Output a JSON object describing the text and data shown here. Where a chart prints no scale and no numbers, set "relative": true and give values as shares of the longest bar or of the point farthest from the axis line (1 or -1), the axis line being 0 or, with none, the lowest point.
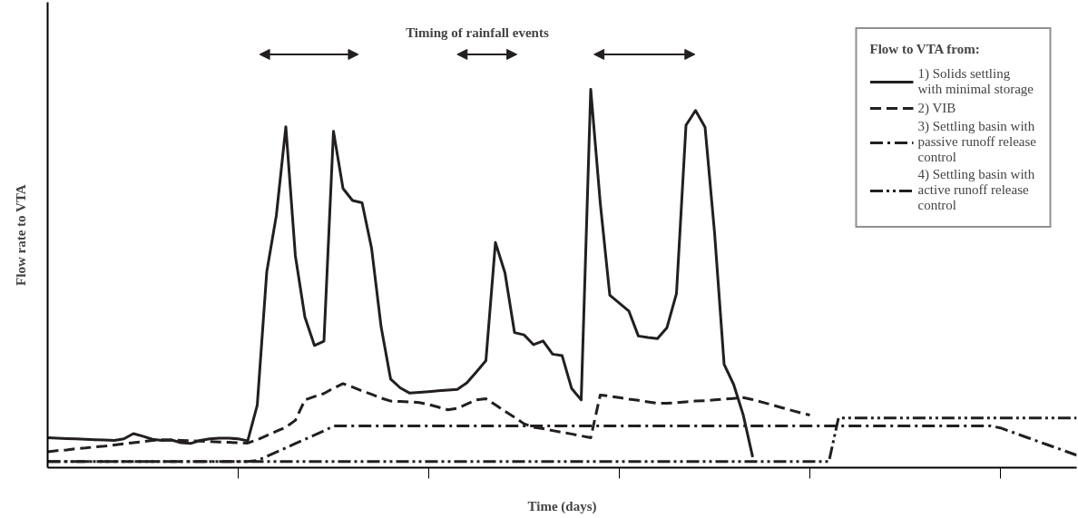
{
  "chart_data": {
    "type": "line",
    "relative": true,
    "xlabel": "Time (days)",
    "ylabel": "Flow rate to VTA",
    "legend_title": "Flow to VTA from:",
    "legend": "top right",
    "grid": false,
    "categories": [
      null,
      null,
      null,
      null,
      null,
      null,
      null,
      null,
      null,
      null,
      null,
      null,
      null,
      null,
      null,
      null,
      null,
      null,
      null,
      null,
      null,
      null,
      null,
      null,
      null,
      null,
      null,
      null,
      null,
      null,
      null,
      null,
      null,
      null,
      null,
      null,
      null,
      null,
      null,
      null,
      null,
      null,
      null,
      null,
      null,
      null,
      null,
      null,
      null,
      null,
      null,
      null,
      null,
      null,
      null,
      null,
      null,
      null,
      null,
      null,
      null,
      null,
      null,
      null,
      null,
      null,
      null,
      null,
      null,
      null,
      null,
      null,
      null,
      null,
      null,
      null,
      null,
      null,
      null,
      null,
      null,
      null,
      null,
      null,
      null,
      null,
      null,
      null,
      null,
      null,
      null,
      null,
      null,
      null,
      null,
      null,
      null,
      null,
      null,
      null,
      null,
      null,
      null,
      null,
      null,
      null,
      null,
      null,
      null
    ],
    "annotations": [
      "Timing of rainfall events"
    ],
    "series": [
      {
        "name": "1) Solids settling with minimal storage",
        "color": "#231f20",
        "line_style": "solid",
        "values": [
          0.079,
          0.078,
          0.077,
          0.076,
          0.075,
          0.074,
          0.073,
          0.072,
          0.076,
          0.09,
          0.083,
          0.075,
          0.072,
          0.073,
          0.066,
          0.064,
          0.072,
          0.076,
          0.078,
          0.078,
          0.076,
          0.071,
          0.165,
          0.518,
          0.666,
          0.901,
          0.56,
          0.398,
          0.323,
          0.334,
          0.889,
          0.738,
          0.706,
          0.7,
          0.58,
          0.372,
          0.234,
          0.211,
          0.197,
          0.199,
          0.201,
          0.203,
          0.205,
          0.207,
          0.224,
          0.253,
          0.283,
          0.595,
          0.515,
          0.357,
          0.351,
          0.325,
          0.335,
          0.3,
          0.296,
          0.209,
          0.179,
          1.0,
          0.7,
          0.456,
          0.435,
          0.414,
          0.348,
          0.344,
          0.341,
          0.37,
          0.46,
          0.905,
          0.944,
          0.9,
          0.62,
          0.273,
          0.22,
          0.14,
          0.028,
          null,
          null,
          null,
          null,
          null,
          null,
          null,
          null,
          null,
          null,
          null,
          null,
          null,
          null,
          null,
          null,
          null,
          null,
          null,
          null,
          null,
          null,
          null,
          null,
          null,
          null,
          null,
          null,
          null,
          null,
          null,
          null,
          null,
          null
        ]
      },
      {
        "name": "2) VIB",
        "color": "#231f20",
        "line_style": "dashed",
        "values": [
          0.042,
          0.045,
          0.047,
          0.05,
          0.052,
          0.055,
          0.057,
          0.06,
          0.063,
          0.066,
          0.069,
          0.072,
          0.074,
          0.073,
          0.072,
          0.071,
          0.07,
          0.069,
          0.068,
          0.067,
          0.066,
          0.065,
          0.074,
          0.085,
          0.096,
          0.107,
          0.125,
          0.179,
          0.188,
          0.196,
          0.21,
          0.222,
          0.213,
          0.203,
          0.194,
          0.184,
          0.176,
          0.175,
          0.174,
          0.172,
          0.167,
          0.16,
          0.153,
          0.157,
          0.168,
          0.179,
          0.182,
          0.166,
          0.149,
          0.133,
          0.116,
          0.107,
          0.103,
          0.098,
          0.093,
          0.089,
          0.084,
          0.079,
          0.192,
          0.189,
          0.185,
          0.181,
          0.178,
          0.174,
          0.17,
          0.17,
          0.172,
          0.174,
          0.176,
          0.177,
          0.179,
          0.181,
          0.183,
          0.185,
          0.18,
          0.173,
          0.166,
          0.159,
          0.152,
          0.145,
          0.139,
          null,
          null,
          null,
          null,
          null,
          null,
          null,
          null,
          null,
          null,
          null,
          null,
          null,
          null,
          null,
          null,
          null,
          null,
          null,
          null,
          null,
          null,
          null,
          null,
          null,
          null,
          null,
          null
        ]
      },
      {
        "name": "3) Settling basin with passive runoff release control",
        "color": "#231f20",
        "line_style": "dashdot",
        "values": [
          0.016,
          0.016,
          0.016,
          0.016,
          0.016,
          0.016,
          0.016,
          0.016,
          0.016,
          0.016,
          0.016,
          0.016,
          0.016,
          0.016,
          0.016,
          0.016,
          0.016,
          0.016,
          0.016,
          0.016,
          0.016,
          0.016,
          0.019,
          0.03,
          0.041,
          0.052,
          0.064,
          0.075,
          0.086,
          0.097,
          0.11,
          0.11,
          0.11,
          0.11,
          0.11,
          0.11,
          0.11,
          0.11,
          0.11,
          0.11,
          0.11,
          0.11,
          0.11,
          0.11,
          0.11,
          0.11,
          0.11,
          0.11,
          0.11,
          0.11,
          0.11,
          0.11,
          0.11,
          0.11,
          0.11,
          0.11,
          0.11,
          0.11,
          0.11,
          0.11,
          0.11,
          0.11,
          0.11,
          0.11,
          0.11,
          0.11,
          0.11,
          0.11,
          0.11,
          0.11,
          0.11,
          0.11,
          0.11,
          0.11,
          0.11,
          0.11,
          0.11,
          0.11,
          0.11,
          0.11,
          0.11,
          0.11,
          0.11,
          0.11,
          0.11,
          0.11,
          0.11,
          0.11,
          0.11,
          0.11,
          0.11,
          0.11,
          0.11,
          0.11,
          0.11,
          0.11,
          0.11,
          0.11,
          0.11,
          0.11,
          0.105,
          0.096,
          0.087,
          0.078,
          0.069,
          0.06,
          0.051,
          0.042,
          0.033
        ]
      },
      {
        "name": "4) Settling basin with active runoff release control",
        "color": "#231f20",
        "line_style": "dashdotdot",
        "values": [
          0.016,
          0.016,
          0.016,
          0.016,
          0.016,
          0.016,
          0.016,
          0.016,
          0.016,
          0.016,
          0.016,
          0.016,
          0.016,
          0.016,
          0.016,
          0.016,
          0.016,
          0.016,
          0.016,
          0.016,
          0.016,
          0.016,
          0.016,
          0.016,
          0.016,
          0.016,
          0.016,
          0.016,
          0.016,
          0.016,
          0.016,
          0.016,
          0.016,
          0.016,
          0.016,
          0.016,
          0.016,
          0.016,
          0.016,
          0.016,
          0.016,
          0.016,
          0.016,
          0.016,
          0.016,
          0.016,
          0.016,
          0.016,
          0.016,
          0.016,
          0.016,
          0.016,
          0.016,
          0.016,
          0.016,
          0.016,
          0.016,
          0.016,
          0.016,
          0.016,
          0.016,
          0.016,
          0.016,
          0.016,
          0.016,
          0.016,
          0.016,
          0.016,
          0.016,
          0.016,
          0.016,
          0.016,
          0.016,
          0.016,
          0.016,
          0.016,
          0.016,
          0.016,
          0.016,
          0.016,
          0.016,
          0.016,
          0.016,
          0.131,
          0.131,
          0.131,
          0.131,
          0.131,
          0.131,
          0.131,
          0.131,
          0.131,
          0.131,
          0.131,
          0.131,
          0.131,
          0.131,
          0.131,
          0.131,
          0.131,
          0.131,
          0.131,
          0.131,
          0.131,
          0.131,
          0.131,
          0.131,
          0.131,
          0.131
        ]
      }
    ]
  }
}
